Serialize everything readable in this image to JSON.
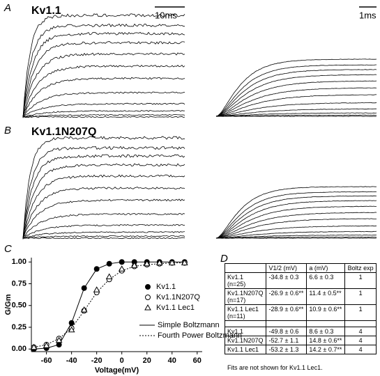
{
  "panel_labels": [
    "A",
    "B",
    "C",
    "D"
  ],
  "panel_a": {
    "title": "Kv1.1",
    "scale_left": "10ms",
    "scale_right": "1ms"
  },
  "panel_b": {
    "title": "Kv1.1N207Q"
  },
  "chart_data": {
    "type": "scatter",
    "x_label": "Voltage(mV)",
    "y_label": "G/Gm",
    "x": [
      -70,
      -60,
      -50,
      -40,
      -30,
      -20,
      -10,
      0,
      10,
      20,
      30,
      40,
      50
    ],
    "series": [
      {
        "name": "Kv1.1",
        "color": "#000000",
        "marker": "circle-filled",
        "line_style": "solid",
        "values": [
          0,
          0.01,
          0.05,
          0.3,
          0.7,
          0.92,
          0.98,
          1.0,
          1.0,
          1.0,
          1.0,
          1.0,
          1.0
        ]
      },
      {
        "name": "Kv1.1N207Q",
        "color": "#000000",
        "marker": "circle-open",
        "line_style": "dotted",
        "values": [
          0.02,
          0.05,
          0.12,
          0.24,
          0.44,
          0.65,
          0.8,
          0.9,
          0.95,
          0.97,
          0.98,
          0.99,
          0.99
        ]
      },
      {
        "name": "Kv1.1 Lec1",
        "color": "#000000",
        "marker": "triangle-open",
        "line_style": "none",
        "values": [
          0.02,
          0.04,
          0.1,
          0.22,
          0.45,
          0.68,
          0.83,
          0.92,
          0.96,
          0.98,
          0.99,
          0.99,
          0.99
        ]
      }
    ],
    "fit_lines": [
      {
        "name": "Simple Boltzmann",
        "style": "solid"
      },
      {
        "name": "Fourth Power Boltzmann",
        "style": "dotted"
      }
    ],
    "xlim": [
      -72,
      64
    ],
    "xticks": [
      -60,
      -40,
      -20,
      0,
      20,
      40,
      60
    ],
    "ylim": [
      -0.03,
      1.05
    ],
    "yticks": [
      {
        "value": 0,
        "label": "0.00"
      },
      {
        "value": 0.25,
        "label": "0.25"
      },
      {
        "value": 0.5,
        "label": "0.50"
      },
      {
        "value": 0.75,
        "label": "0.75"
      },
      {
        "value": 1,
        "label": "1.00"
      }
    ]
  },
  "table": {
    "header": [
      "V1/2 (mV)",
      "a (mV)",
      "Boltz exp"
    ],
    "rows": [
      {
        "name": "Kv1.1",
        "n": "(n=25)",
        "cells": [
          "-34.8 ± 0.3",
          "6.6 ± 0.3",
          "1"
        ]
      },
      {
        "name": "Kv1.1N207Q",
        "n": "(n=17)",
        "cells": [
          "-26.9 ± 0.6**",
          "11.4 ± 0.5**",
          "1"
        ]
      },
      {
        "name": "Kv1.1 Lec1",
        "n": "(n=11)",
        "cells": [
          "-28.9 ± 0.6**",
          "10.9 ± 0.6**",
          "1"
        ]
      },
      {
        "name": "Kv1.1",
        "cells": [
          "-49.8 ± 0.6",
          "8.6 ± 0.3",
          "4"
        ]
      },
      {
        "name": "Kv1.1N207Q",
        "cells": [
          "-52.7 ± 1.1",
          "14.8 ± 0.6**",
          "4"
        ]
      },
      {
        "name": "Kv1.1 Lec1",
        "cells": [
          "-53.2 ± 1.3",
          "14.2 ± 0.7**",
          "4"
        ]
      }
    ],
    "footnote": "Fits are not shown for Kv1.1 Lec1."
  }
}
